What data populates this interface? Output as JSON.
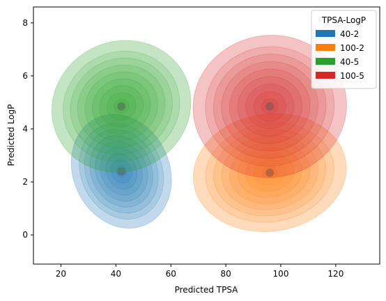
{
  "chart_data": {
    "type": "kde-density",
    "xlabel": "Predicted TPSA",
    "ylabel": "Predicted LogP",
    "xlim": [
      10,
      136
    ],
    "ylim": [
      -1.1,
      8.6
    ],
    "xticks": [
      20,
      40,
      60,
      80,
      100,
      120
    ],
    "yticks": [
      0,
      2,
      4,
      6,
      8
    ],
    "grid": false,
    "legend": {
      "title": "TPSA-LogP",
      "placement": "top-right"
    },
    "series": [
      {
        "name": "40-2",
        "color": "#1f77b4",
        "center": [
          42,
          2.4
        ],
        "spread": [
          7.5,
          0.95
        ],
        "rotation": -25
      },
      {
        "name": "100-2",
        "color": "#ff7f0e",
        "center": [
          96,
          2.35
        ],
        "spread": [
          12,
          0.95
        ],
        "rotation": -8
      },
      {
        "name": "40-5",
        "color": "#2ca02c",
        "center": [
          42,
          4.85
        ],
        "spread": [
          11,
          1.05
        ],
        "rotation": -25
      },
      {
        "name": "100-5",
        "color": "#d62728",
        "center": [
          96,
          4.85
        ],
        "spread": [
          12,
          1.15
        ],
        "rotation": -8
      }
    ]
  }
}
